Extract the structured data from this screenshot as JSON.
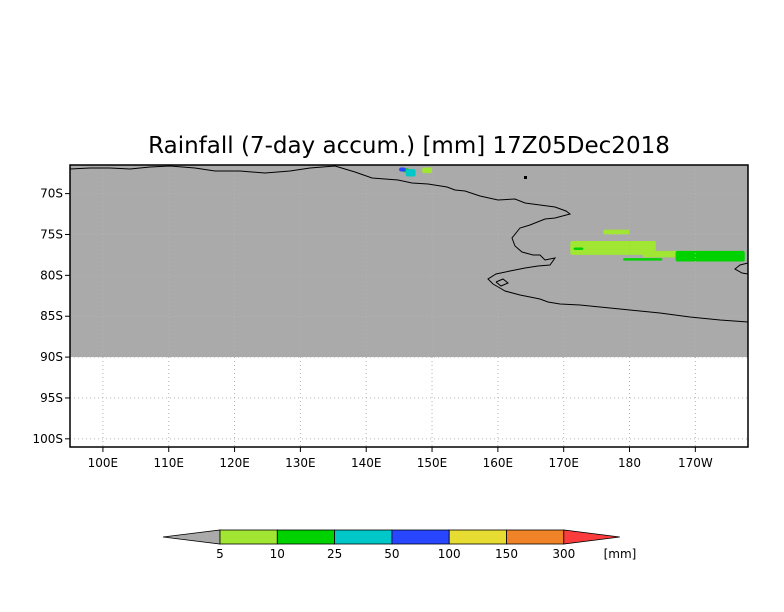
{
  "title": "Rainfall (7-day accum.) [mm] 17Z05Dec2018",
  "chart_data": {
    "type": "map",
    "variable": "Rainfall (7-day accum.)",
    "units": "[mm]",
    "valid_time": "17Z05Dec2018",
    "lon_range": [
      95,
      198
    ],
    "lat_range": [
      -101,
      -66.5
    ],
    "data_coverage_lat": [
      -90,
      -66.5
    ],
    "no_data_color": "#aaaaaa",
    "grid": true,
    "x_ticks": [
      {
        "lon": 100,
        "label": "100E"
      },
      {
        "lon": 110,
        "label": "110E"
      },
      {
        "lon": 120,
        "label": "120E"
      },
      {
        "lon": 130,
        "label": "130E"
      },
      {
        "lon": 140,
        "label": "140E"
      },
      {
        "lon": 150,
        "label": "150E"
      },
      {
        "lon": 160,
        "label": "160E"
      },
      {
        "lon": 170,
        "label": "170E"
      },
      {
        "lon": 180,
        "label": "180"
      },
      {
        "lon": 190,
        "label": "170W"
      }
    ],
    "y_ticks": [
      {
        "lat": -70,
        "label": "70S"
      },
      {
        "lat": -75,
        "label": "75S"
      },
      {
        "lat": -80,
        "label": "80S"
      },
      {
        "lat": -85,
        "label": "85S"
      },
      {
        "lat": -90,
        "label": "90S"
      },
      {
        "lat": -95,
        "label": "95S"
      },
      {
        "lat": -100,
        "label": "100S"
      }
    ],
    "colorbar": {
      "levels": [
        "5",
        "10",
        "25",
        "50",
        "100",
        "150",
        "300"
      ],
      "units_label": "[mm]",
      "under_color": "#aaaaaa",
      "colors": [
        "#a0e632",
        "#00d200",
        "#00c8c8",
        "#2846ff",
        "#e6dc32",
        "#f08228",
        "#fa3c3c"
      ]
    },
    "precip_regions": [
      {
        "level_index": 1,
        "lon": [
          145.5,
          146.5
        ],
        "lat": [
          -66.9,
          -67.4
        ]
      },
      {
        "level_index": 2,
        "lon": [
          146.0,
          147.5
        ],
        "lat": [
          -67.0,
          -67.9
        ]
      },
      {
        "level_index": 3,
        "lon": [
          145.0,
          146.0
        ],
        "lat": [
          -66.8,
          -67.3
        ]
      },
      {
        "level_index": 0,
        "lon": [
          148.5,
          150.0
        ],
        "lat": [
          -66.8,
          -67.5
        ]
      },
      {
        "level_index": 0,
        "lon": [
          176.0,
          180.0
        ],
        "lat": [
          -74.4,
          -75.0
        ]
      },
      {
        "level_index": 0,
        "lon": [
          171.0,
          184.0
        ],
        "lat": [
          -75.8,
          -77.5
        ]
      },
      {
        "level_index": 0,
        "lon": [
          182.0,
          192.0
        ],
        "lat": [
          -77.0,
          -77.8
        ]
      },
      {
        "level_index": 1,
        "lon": [
          187.0,
          197.5
        ],
        "lat": [
          -77.0,
          -78.3
        ]
      },
      {
        "level_index": 1,
        "lon": [
          179.0,
          185.0
        ],
        "lat": [
          -77.9,
          -78.2
        ]
      },
      {
        "level_index": 1,
        "lon": [
          171.5,
          173.0
        ],
        "lat": [
          -76.6,
          -76.9
        ]
      }
    ]
  }
}
